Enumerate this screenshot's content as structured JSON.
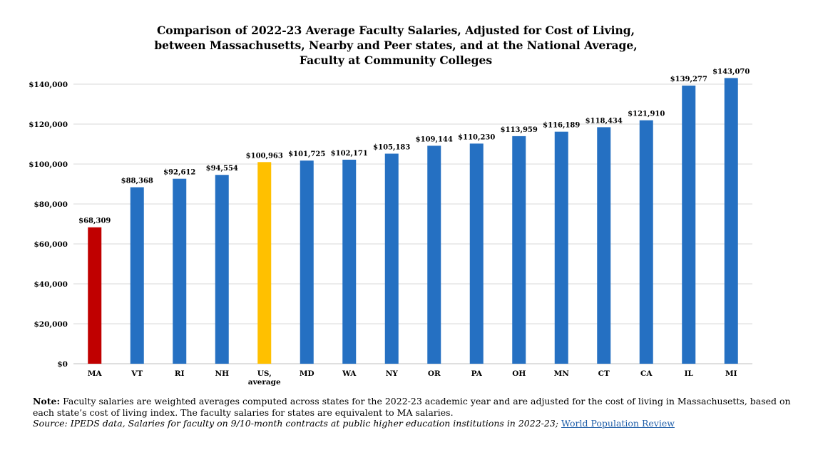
{
  "title_lines": [
    "Comparison of 2022-23 Average Faculty Salaries, Adjusted for Cost of Living,",
    "between Massachusetts, Nearby and Peer states, and at the National Average,",
    "Faculty at Community Colleges"
  ],
  "note": {
    "label": "Note:",
    "text": "Faculty salaries are weighted averages computed across states for the 2022-23 academic year and are adjusted for the cost of living in Massachusetts, based on each state’s cost of living index. The faculty salaries for states are equivalent to MA salaries.",
    "source_text": "Source: IPEDS data, Salaries for faculty on 9/10-month contracts at public higher education institutions in 2022-23;",
    "source_link": "World Population Review"
  },
  "colors": {
    "default": "#2570c2",
    "ma": "#c00000",
    "us": "#ffc000",
    "grid": "#d9d9d9"
  },
  "chart_data": {
    "type": "bar",
    "title": "Comparison of 2022-23 Average Faculty Salaries, Adjusted for Cost of Living, between Massachusetts, Nearby and Peer states, and at the National Average, Faculty at Community Colleges",
    "categories": [
      [
        "MA"
      ],
      [
        "VT"
      ],
      [
        "RI"
      ],
      [
        "NH"
      ],
      [
        "US,",
        "average"
      ],
      [
        "MD"
      ],
      [
        "WA"
      ],
      [
        "NY"
      ],
      [
        "OR"
      ],
      [
        "PA"
      ],
      [
        "OH"
      ],
      [
        "MN"
      ],
      [
        "CT"
      ],
      [
        "CA"
      ],
      [
        "IL"
      ],
      [
        "MI"
      ]
    ],
    "values": [
      68309,
      88368,
      92612,
      94554,
      100963,
      101725,
      102171,
      105183,
      109144,
      110230,
      113959,
      116189,
      118434,
      121910,
      139277,
      143070
    ],
    "data_labels": [
      "$68,309",
      "$88,368",
      "$92,612",
      "$94,554",
      "$100,963",
      "$101,725",
      "$102,171",
      "$105,183",
      "$109,144",
      "$110,230",
      "$113,959",
      "$116,189",
      "$118,434",
      "$121,910",
      "$139,277",
      "$143,070"
    ],
    "bar_colors": [
      "ma",
      "default",
      "default",
      "default",
      "us",
      "default",
      "default",
      "default",
      "default",
      "default",
      "default",
      "default",
      "default",
      "default",
      "default",
      "default"
    ],
    "yticks": [
      0,
      20000,
      40000,
      60000,
      80000,
      100000,
      120000,
      140000
    ],
    "ytick_labels": [
      "$0",
      "$20,000",
      "$40,000",
      "$60,000",
      "$80,000",
      "$100,000",
      "$120,000",
      "$140,000"
    ],
    "ylim": [
      0,
      140000
    ],
    "grid": true,
    "legend": "none"
  }
}
